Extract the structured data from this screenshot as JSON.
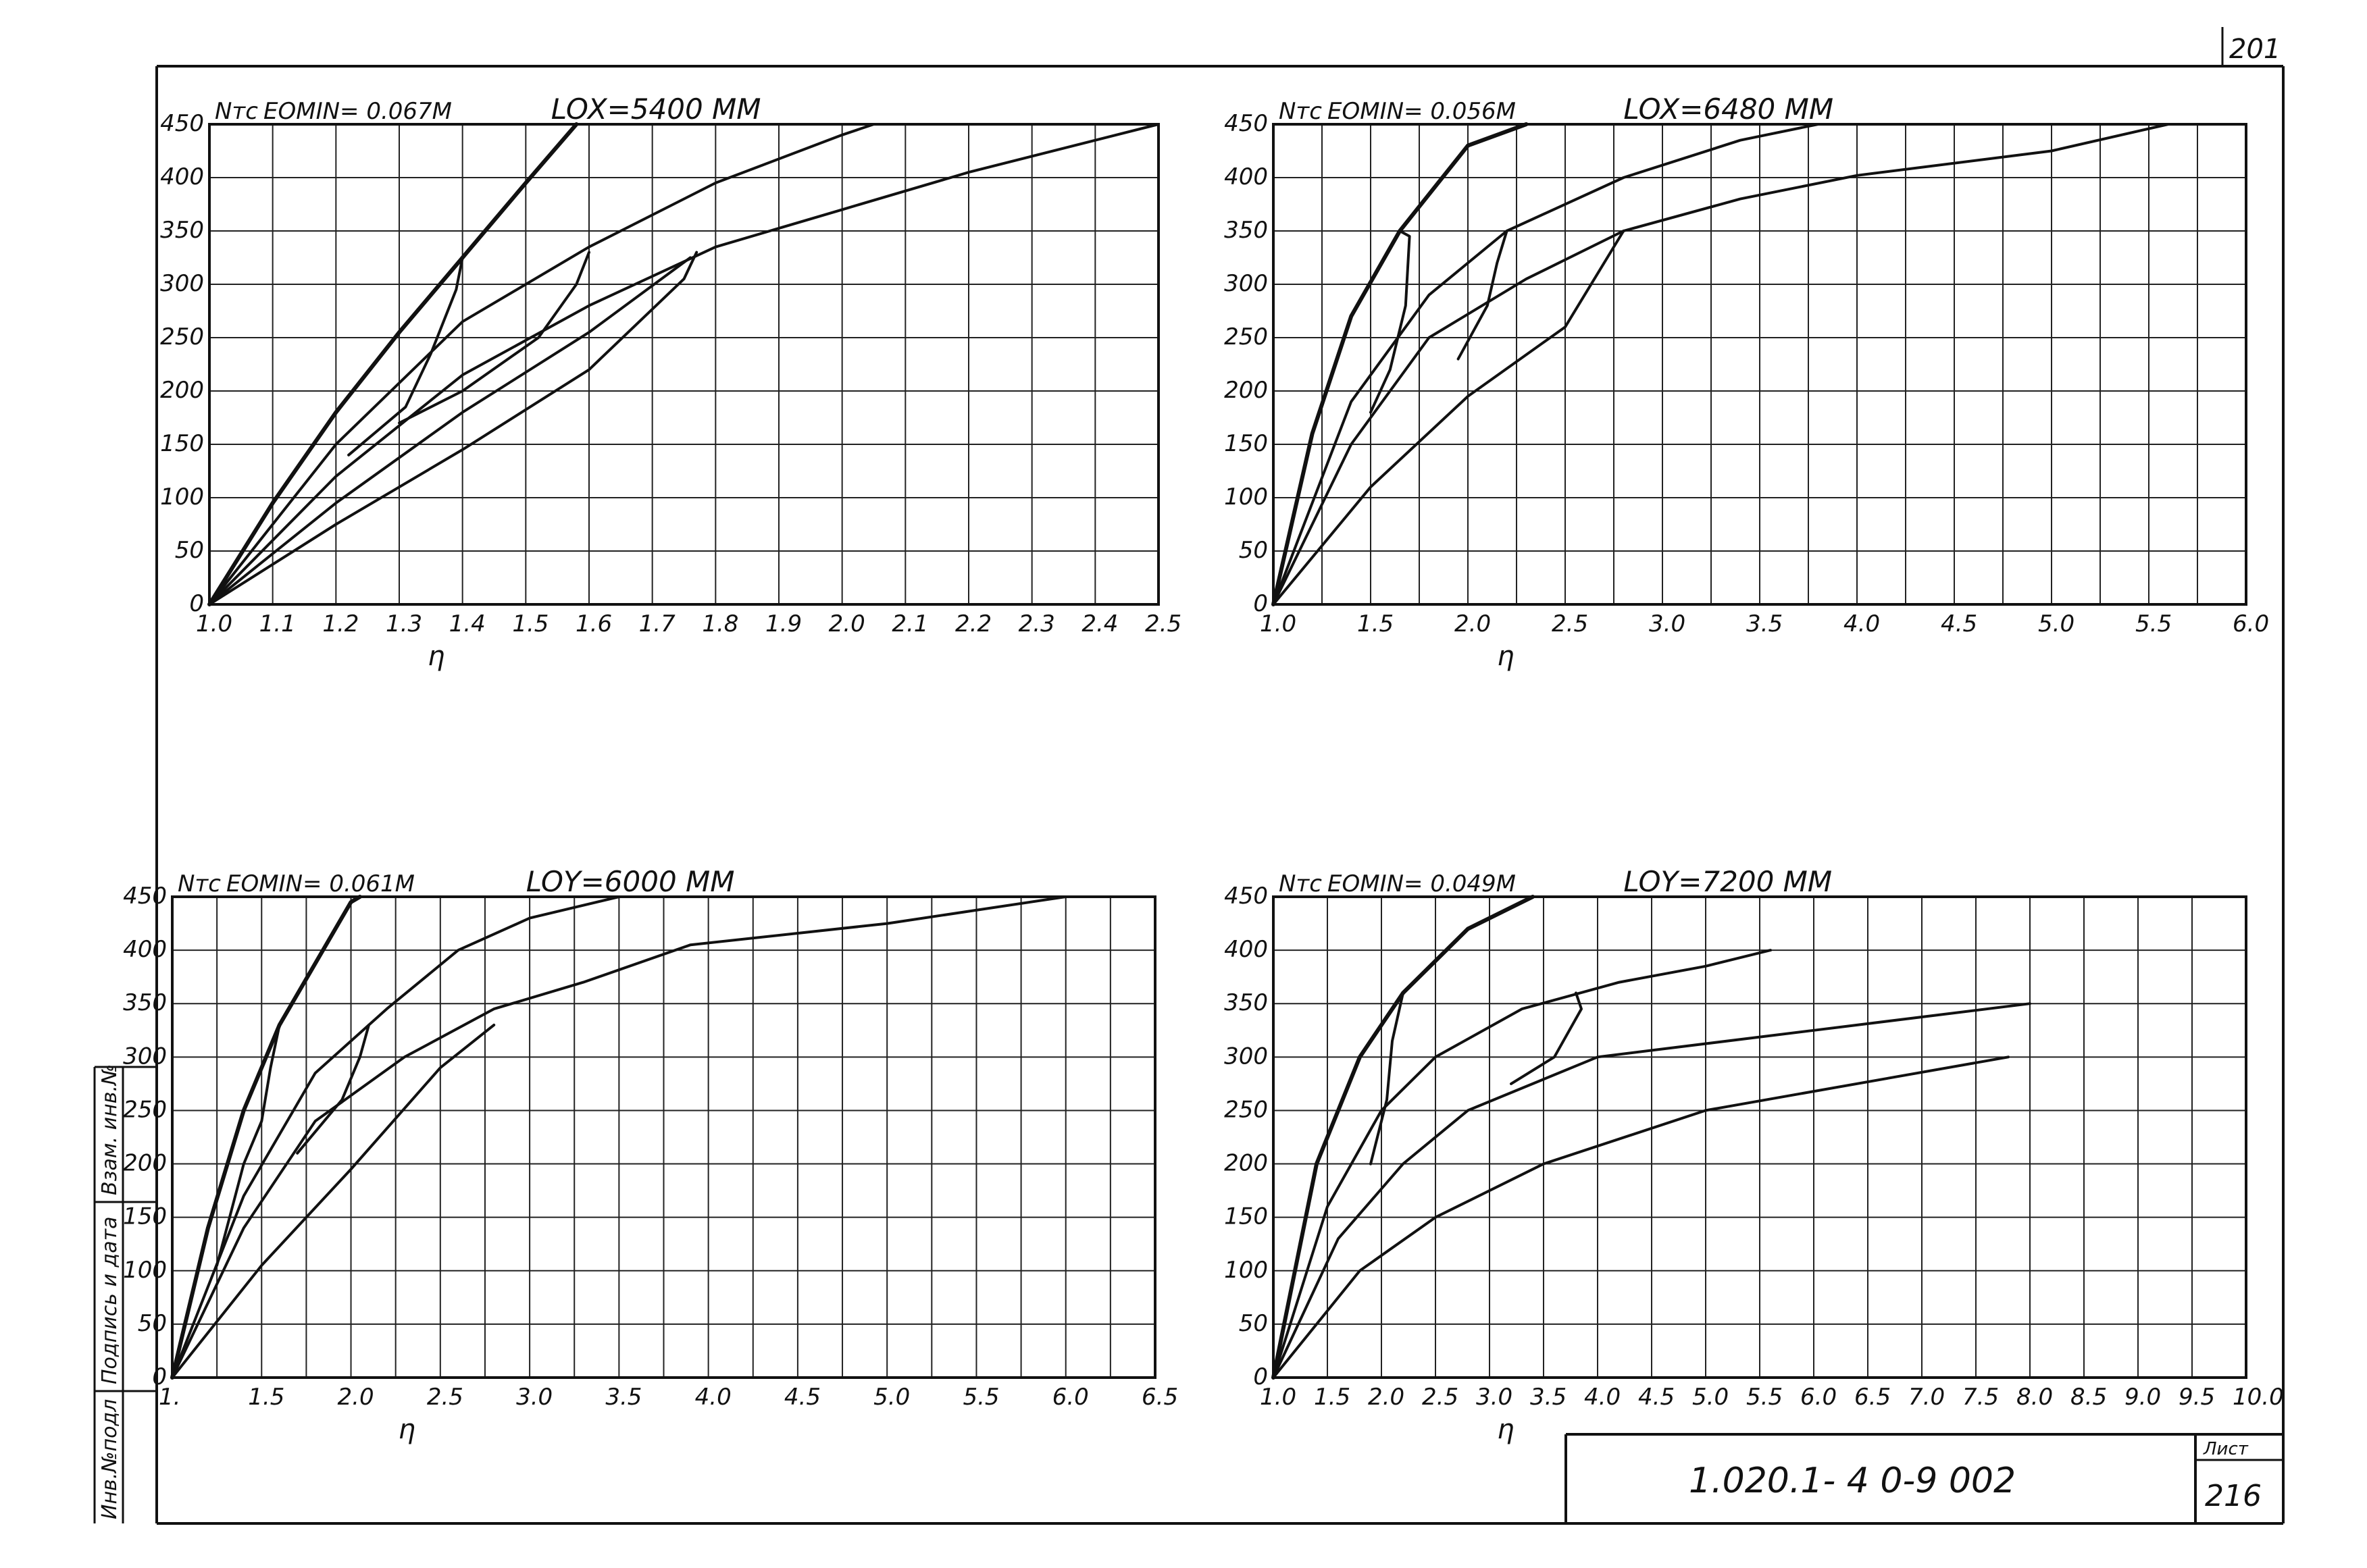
{
  "page_number": "201",
  "stamp": {
    "designation": "1.020.1- 4    0-9  002",
    "sheet_label": "Лист",
    "sheet_number": "216"
  },
  "side_labels": [
    "Инв.№подл",
    "Подпись и дата",
    "Взам. инв.№"
  ],
  "chart_data": [
    {
      "type": "line",
      "series_label": "Nтс",
      "title": "EOMIN= 0.067М",
      "subtitle": "LOX=5400 ММ",
      "xlabel": "η",
      "xlim": [
        1.0,
        2.5
      ],
      "ylim": [
        0,
        450
      ],
      "xticks": [
        "1.0",
        "1.1",
        "1.2",
        "1.3",
        "1.4",
        "1.5",
        "1.6",
        "1.7",
        "1.8",
        "1.9",
        "2.0",
        "2.1",
        "2.2",
        "2.3",
        "2.4",
        "2.5"
      ],
      "yticks": [
        "0",
        "50",
        "100",
        "150",
        "200",
        "250",
        "300",
        "350",
        "400",
        "450"
      ],
      "grid": true,
      "series": [
        {
          "thick": true,
          "points": [
            [
              1.0,
              0
            ],
            [
              1.1,
              95
            ],
            [
              1.2,
              180
            ],
            [
              1.3,
              255
            ],
            [
              1.4,
              325
            ],
            [
              1.5,
              395
            ],
            [
              1.58,
              450
            ]
          ]
        },
        {
          "points": [
            [
              1.0,
              0
            ],
            [
              1.2,
              150
            ],
            [
              1.4,
              265
            ],
            [
              1.6,
              335
            ],
            [
              1.8,
              395
            ],
            [
              2.0,
              440
            ],
            [
              2.05,
              450
            ]
          ]
        },
        {
          "points": [
            [
              1.0,
              0
            ],
            [
              1.2,
              120
            ],
            [
              1.4,
              215
            ],
            [
              1.6,
              280
            ],
            [
              1.8,
              335
            ],
            [
              2.0,
              370
            ],
            [
              2.2,
              405
            ],
            [
              2.5,
              450
            ]
          ]
        },
        {
          "points": [
            [
              1.0,
              0
            ],
            [
              1.2,
              95
            ],
            [
              1.4,
              180
            ],
            [
              1.6,
              255
            ],
            [
              1.76,
              325
            ]
          ]
        },
        {
          "points": [
            [
              1.0,
              0
            ],
            [
              1.2,
              75
            ],
            [
              1.4,
              145
            ],
            [
              1.6,
              220
            ],
            [
              1.75,
              305
            ],
            [
              1.77,
              330
            ]
          ]
        },
        {
          "points": [
            [
              1.4,
              325
            ],
            [
              1.39,
              295
            ],
            [
              1.35,
              235
            ],
            [
              1.31,
              185
            ],
            [
              1.22,
              140
            ]
          ]
        },
        {
          "points": [
            [
              1.6,
              330
            ],
            [
              1.58,
              300
            ],
            [
              1.52,
              250
            ],
            [
              1.4,
              200
            ],
            [
              1.3,
              170
            ]
          ]
        }
      ]
    },
    {
      "type": "line",
      "series_label": "Nтс",
      "title": "EOMIN= 0.056М",
      "subtitle": "LOX=6480 ММ",
      "xlabel": "η",
      "xlim": [
        1.0,
        6.0
      ],
      "ylim": [
        0,
        450
      ],
      "xticks": [
        "1.0",
        "",
        "1.5",
        "",
        "2.0",
        "",
        "2.5",
        "",
        "3.0",
        "",
        "3.5",
        "",
        "4.0",
        "",
        "4.5",
        "",
        "5.0",
        "",
        "5.5",
        "",
        "6.0"
      ],
      "yticks": [
        "0",
        "50",
        "100",
        "150",
        "200",
        "250",
        "300",
        "350",
        "400",
        "450"
      ],
      "grid": true,
      "series": [
        {
          "thick": true,
          "points": [
            [
              1.0,
              0
            ],
            [
              1.2,
              160
            ],
            [
              1.4,
              270
            ],
            [
              1.65,
              350
            ],
            [
              2.0,
              430
            ],
            [
              2.3,
              450
            ]
          ]
        },
        {
          "points": [
            [
              1.0,
              0
            ],
            [
              1.4,
              190
            ],
            [
              1.8,
              290
            ],
            [
              2.2,
              350
            ],
            [
              2.8,
              400
            ],
            [
              3.4,
              435
            ],
            [
              3.8,
              450
            ]
          ]
        },
        {
          "points": [
            [
              1.0,
              0
            ],
            [
              1.4,
              150
            ],
            [
              1.8,
              250
            ],
            [
              2.3,
              305
            ],
            [
              2.8,
              350
            ],
            [
              3.4,
              380
            ],
            [
              4.0,
              402
            ],
            [
              5.0,
              425
            ],
            [
              5.6,
              450
            ]
          ]
        },
        {
          "points": [
            [
              1.0,
              0
            ],
            [
              1.5,
              110
            ],
            [
              2.0,
              195
            ],
            [
              2.5,
              260
            ],
            [
              2.8,
              350
            ]
          ]
        },
        {
          "points": [
            [
              1.65,
              350
            ],
            [
              1.7,
              345
            ],
            [
              1.68,
              280
            ],
            [
              1.6,
              220
            ],
            [
              1.5,
              180
            ]
          ]
        },
        {
          "points": [
            [
              2.2,
              350
            ],
            [
              2.15,
              320
            ],
            [
              2.1,
              280
            ],
            [
              1.95,
              230
            ]
          ]
        }
      ]
    },
    {
      "type": "line",
      "series_label": "Nтс",
      "title": "EOMIN= 0.061М",
      "subtitle": "LOY=6000 ММ",
      "xlabel": "η",
      "xlim": [
        1.0,
        6.5
      ],
      "ylim": [
        0,
        450
      ],
      "xticks": [
        "1.",
        "",
        "1.5",
        "",
        "2.0",
        "",
        "2.5",
        "",
        "3.0",
        "",
        "3.5",
        "",
        "4.0",
        "",
        "4.5",
        "",
        "5.0",
        "",
        "5.5",
        "",
        "6.0",
        "",
        "6.5"
      ],
      "yticks": [
        "0",
        "50",
        "100",
        "150",
        "200",
        "250",
        "300",
        "350",
        "400",
        "450"
      ],
      "grid": true,
      "series": [
        {
          "thick": true,
          "points": [
            [
              1.0,
              0
            ],
            [
              1.2,
              140
            ],
            [
              1.4,
              250
            ],
            [
              1.6,
              330
            ],
            [
              2.0,
              445
            ],
            [
              2.05,
              450
            ]
          ]
        },
        {
          "points": [
            [
              1.0,
              0
            ],
            [
              1.4,
              170
            ],
            [
              1.8,
              285
            ],
            [
              2.2,
              345
            ],
            [
              2.6,
              400
            ],
            [
              3.0,
              430
            ],
            [
              3.5,
              450
            ]
          ]
        },
        {
          "points": [
            [
              1.0,
              0
            ],
            [
              1.4,
              140
            ],
            [
              1.8,
              240
            ],
            [
              2.3,
              300
            ],
            [
              2.8,
              345
            ],
            [
              3.3,
              370
            ],
            [
              3.9,
              405
            ],
            [
              5.0,
              425
            ],
            [
              6.0,
              450
            ]
          ]
        },
        {
          "points": [
            [
              1.0,
              0
            ],
            [
              1.5,
              105
            ],
            [
              2.0,
              195
            ],
            [
              2.5,
              290
            ],
            [
              2.8,
              330
            ]
          ]
        },
        {
          "points": [
            [
              1.6,
              330
            ],
            [
              1.55,
              290
            ],
            [
              1.5,
              240
            ],
            [
              1.4,
              200
            ],
            [
              1.25,
              105
            ]
          ]
        },
        {
          "points": [
            [
              2.1,
              330
            ],
            [
              2.05,
              300
            ],
            [
              1.95,
              260
            ],
            [
              1.7,
              210
            ]
          ]
        }
      ]
    },
    {
      "type": "line",
      "series_label": "Nтс",
      "title": "EOMIN= 0.049М",
      "subtitle": "LOY=7200 ММ",
      "xlabel": "η",
      "xlim": [
        1.0,
        10.0
      ],
      "ylim": [
        0,
        450
      ],
      "xticks": [
        "1.0",
        "1.5",
        "2.0",
        "2.5",
        "3.0",
        "3.5",
        "4.0",
        "4.5",
        "5.0",
        "5.5",
        "6.0",
        "6.5",
        "7.0",
        "7.5",
        "8.0",
        "8.5",
        "9.0",
        "9.5",
        "10.0"
      ],
      "yticks": [
        "0",
        "50",
        "100",
        "150",
        "200",
        "250",
        "300",
        "350",
        "400",
        "450"
      ],
      "grid": true,
      "series": [
        {
          "thick": true,
          "points": [
            [
              1.0,
              0
            ],
            [
              1.4,
              200
            ],
            [
              1.8,
              300
            ],
            [
              2.2,
              360
            ],
            [
              2.8,
              420
            ],
            [
              3.4,
              450
            ]
          ]
        },
        {
          "points": [
            [
              1.0,
              0
            ],
            [
              1.5,
              160
            ],
            [
              2.0,
              250
            ],
            [
              2.5,
              300
            ],
            [
              3.3,
              345
            ],
            [
              4.2,
              370
            ],
            [
              5.0,
              385
            ],
            [
              5.6,
              400
            ]
          ]
        },
        {
          "points": [
            [
              1.0,
              0
            ],
            [
              1.6,
              130
            ],
            [
              2.2,
              200
            ],
            [
              2.8,
              250
            ],
            [
              4.0,
              300
            ],
            [
              6.0,
              325
            ],
            [
              8.0,
              350
            ]
          ]
        },
        {
          "points": [
            [
              1.0,
              0
            ],
            [
              1.8,
              100
            ],
            [
              2.5,
              150
            ],
            [
              3.5,
              200
            ],
            [
              5.0,
              250
            ],
            [
              7.8,
              300
            ]
          ]
        },
        {
          "points": [
            [
              2.2,
              360
            ],
            [
              2.1,
              315
            ],
            [
              2.05,
              260
            ],
            [
              1.9,
              200
            ]
          ]
        },
        {
          "points": [
            [
              3.8,
              360
            ],
            [
              3.85,
              345
            ],
            [
              3.6,
              300
            ],
            [
              3.2,
              275
            ]
          ]
        }
      ]
    }
  ]
}
